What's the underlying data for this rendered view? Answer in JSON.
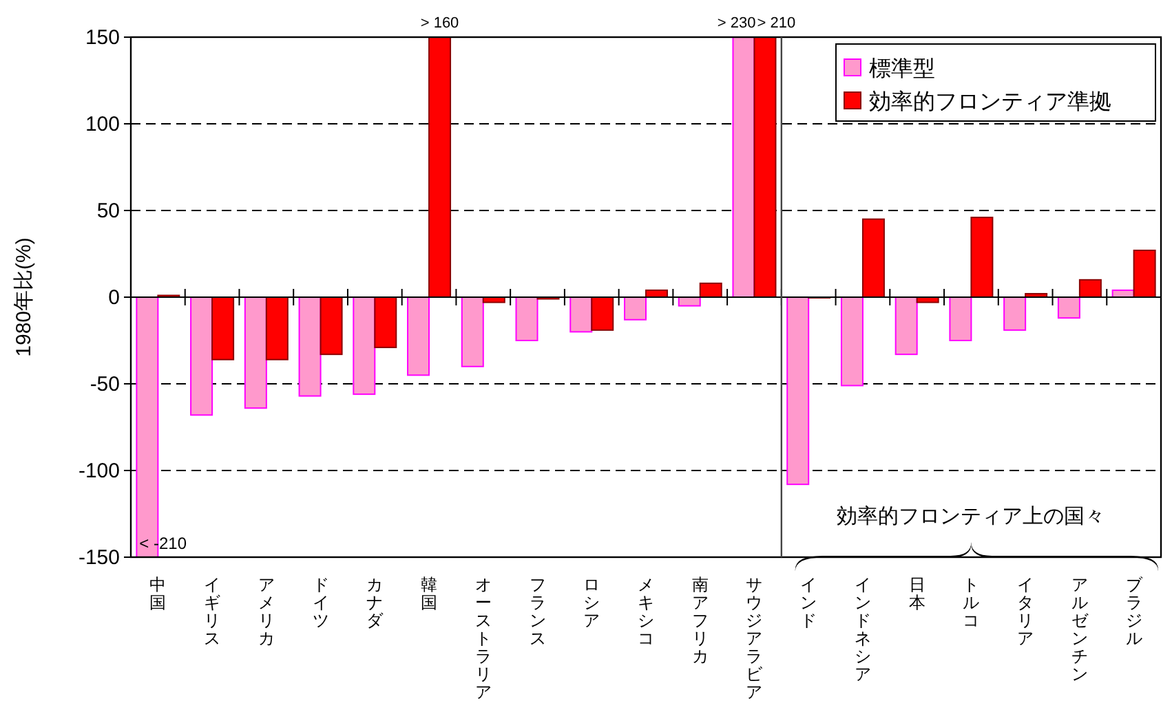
{
  "chart_data": {
    "type": "bar",
    "ylabel": "1980年比(%)",
    "categories": [
      "中国",
      "イギリス",
      "アメリカ",
      "ドイツ",
      "カナダ",
      "韓国",
      "オーストラリア",
      "フランス",
      "ロシア",
      "メキシコ",
      "南アフリカ",
      "サウジアラビア",
      "インド",
      "インドネシア",
      "日本",
      "トルコ",
      "イタリア",
      "アルゼンチン",
      "ブラジル"
    ],
    "series": [
      {
        "name": "標準型",
        "color": "#ff99cc",
        "values": [
          -150,
          -68,
          -64,
          -57,
          -56,
          -45,
          -40,
          -25,
          -20,
          -13,
          -5,
          150,
          -108,
          -51,
          -33,
          -25,
          -19,
          -12,
          4
        ]
      },
      {
        "name": "効率的フロンティア準拠",
        "color": "#ff0000",
        "values": [
          1,
          -36,
          -36,
          -33,
          -29,
          150,
          -3,
          -1,
          -19,
          4,
          8,
          150,
          0,
          45,
          -3,
          46,
          2,
          10,
          27
        ]
      }
    ],
    "ylim": [
      -150,
      150
    ],
    "yticks": [
      -150,
      -100,
      -50,
      0,
      50,
      100,
      150
    ],
    "grid": "y",
    "legend": "top right",
    "ref_lines": [
      {
        "axis": "x",
        "value": "インド",
        "label": "効率的フロンティア上の国々"
      }
    ],
    "annotations": [
      {
        "text": "< -210",
        "x": "中国",
        "y": -150
      },
      {
        "text": "> 160",
        "x": "韓国",
        "y": 150
      },
      {
        "text": "> 230",
        "x": "サウジアラビア",
        "y": 150
      },
      {
        "text": "> 210",
        "x": "サウジアラビア",
        "y": 150
      }
    ]
  }
}
